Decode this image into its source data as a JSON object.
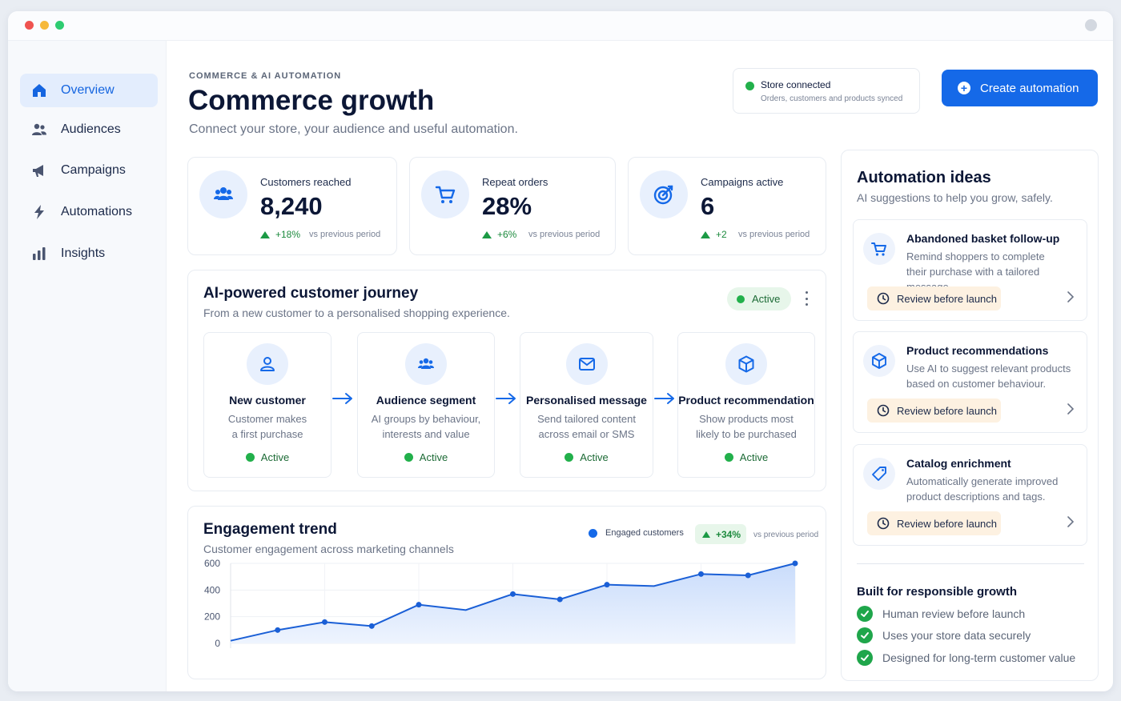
{
  "sidebar": {
    "items": [
      {
        "label": "Overview",
        "icon": "home-icon",
        "active": true
      },
      {
        "label": "Audiences",
        "icon": "users-icon"
      },
      {
        "label": "Campaigns",
        "icon": "megaphone-icon"
      },
      {
        "label": "Automations",
        "icon": "lightning-icon"
      },
      {
        "label": "Insights",
        "icon": "bar-chart-icon"
      }
    ]
  },
  "header": {
    "eyebrow": "COMMERCE & AI AUTOMATION",
    "title": "Commerce growth",
    "subtitle": "Connect your store, your audience and useful automation.",
    "store_status": "Store connected",
    "store_detail": "Orders, customers and products synced",
    "create_label": "Create automation"
  },
  "kpis": [
    {
      "label": "Customers reached",
      "value": "8,240",
      "delta": "+18%",
      "compare": "vs previous period",
      "icon": "users-icon"
    },
    {
      "label": "Repeat orders",
      "value": "28%",
      "delta": "+6%",
      "compare": "vs previous period",
      "icon": "cart-icon"
    },
    {
      "label": "Campaigns active",
      "value": "6",
      "delta": "+2",
      "compare": "vs previous period",
      "icon": "target-icon"
    }
  ],
  "journey": {
    "title": "AI-powered customer journey",
    "subtitle": "From a new customer to a personalised shopping experience.",
    "status": "Active",
    "steps": [
      {
        "title": "New customer",
        "line1": "Customer makes",
        "line2": "a first purchase",
        "status": "Active",
        "icon": "user-icon"
      },
      {
        "title": "Audience segment",
        "line1": "AI groups by behaviour,",
        "line2": "interests and value",
        "status": "Active",
        "icon": "users-icon"
      },
      {
        "title": "Personalised message",
        "line1": "Send tailored content",
        "line2": "across email or SMS",
        "status": "Active",
        "icon": "mail-icon"
      },
      {
        "title": "Product recommendation",
        "line1": "Show products most",
        "line2": "likely to be purchased",
        "status": "Active",
        "icon": "box-icon"
      }
    ]
  },
  "trend": {
    "title": "Engagement trend",
    "subtitle": "Customer engagement across marketing channels",
    "legend": "Engaged customers",
    "delta": "+34%",
    "compare": "vs previous period"
  },
  "chart_data": {
    "type": "area",
    "series": [
      {
        "name": "Engaged customers",
        "values": [
          20,
          100,
          160,
          130,
          290,
          250,
          370,
          330,
          440,
          430,
          520,
          510,
          600
        ]
      }
    ],
    "x": [
      0,
      1,
      2,
      3,
      4,
      5,
      6,
      7,
      8,
      9,
      10,
      11,
      12
    ],
    "yticks": [
      "600",
      "400",
      "200",
      "0"
    ],
    "ylim": [
      0,
      600
    ],
    "grid": true,
    "legend_position": "top-right"
  },
  "ideas": {
    "title": "Automation ideas",
    "subtitle": "AI suggestions to help you grow, safely.",
    "items": [
      {
        "title": "Abandoned basket follow-up",
        "line1": "Remind shoppers to complete",
        "line2": "their purchase with a tailored message.",
        "action": "Review before launch",
        "icon": "cart-icon"
      },
      {
        "title": "Product recommendations",
        "line1": "Use AI to suggest relevant products",
        "line2": "based on customer behaviour.",
        "action": "Review before launch",
        "icon": "box-icon"
      },
      {
        "title": "Catalog enrichment",
        "line1": "Automatically generate improved",
        "line2": "product descriptions and tags.",
        "action": "Review before launch",
        "icon": "tag-icon"
      }
    ]
  },
  "responsible": {
    "title": "Built for responsible growth",
    "items": [
      "Human review before launch",
      "Uses your store data securely",
      "Designed for long-term customer value"
    ]
  },
  "colors": {
    "accent": "#1569e8",
    "success": "#22b04b",
    "warning_bg": "#fdf1e1"
  }
}
